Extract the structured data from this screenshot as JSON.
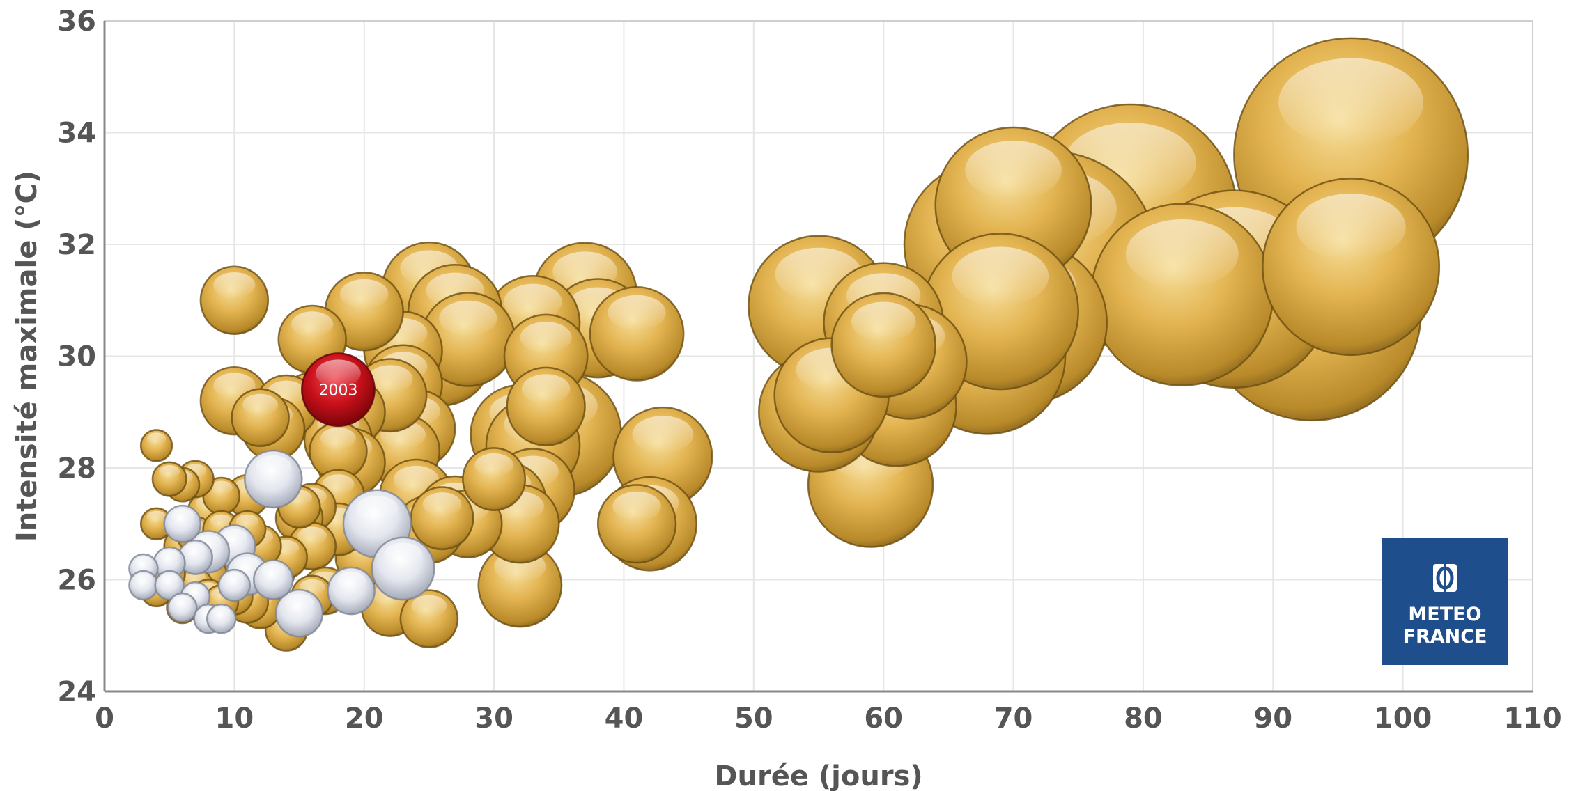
{
  "chart_data": {
    "type": "bubble",
    "title": "",
    "xlabel": "Durée (jours)",
    "ylabel": "Intensité maximale (°C)",
    "xlim": [
      0,
      110
    ],
    "ylim": [
      24,
      36
    ],
    "xticks": [
      0,
      10,
      20,
      30,
      40,
      50,
      60,
      70,
      80,
      90,
      100,
      110
    ],
    "yticks": [
      24,
      26,
      28,
      30,
      32,
      34,
      36
    ],
    "grid": true,
    "legend": "none",
    "colors": {
      "gold": "#D9A93C",
      "silver": "#D8DCE4",
      "red": "#C8101A"
    },
    "series": [
      {
        "color_key": "gold",
        "points": [
          {
            "x": 96,
            "y": 33.6,
            "r": 9.0
          },
          {
            "x": 79,
            "y": 32.6,
            "r": 8.2
          },
          {
            "x": 93,
            "y": 30.8,
            "r": 8.4
          },
          {
            "x": 87,
            "y": 31.2,
            "r": 7.6
          },
          {
            "x": 73,
            "y": 31.8,
            "r": 8.0
          },
          {
            "x": 96,
            "y": 31.6,
            "r": 6.8
          },
          {
            "x": 83,
            "y": 31.1,
            "r": 7.0
          },
          {
            "x": 68,
            "y": 32.0,
            "r": 6.4
          },
          {
            "x": 70,
            "y": 32.7,
            "r": 6.0
          },
          {
            "x": 71,
            "y": 30.6,
            "r": 6.2
          },
          {
            "x": 68,
            "y": 30.0,
            "r": 6.0
          },
          {
            "x": 69,
            "y": 30.8,
            "r": 6.0
          },
          {
            "x": 55,
            "y": 30.9,
            "r": 5.4
          },
          {
            "x": 60,
            "y": 30.6,
            "r": 4.6
          },
          {
            "x": 62,
            "y": 29.9,
            "r": 4.4
          },
          {
            "x": 60,
            "y": 30.2,
            "r": 4.0
          },
          {
            "x": 56,
            "y": 29.3,
            "r": 4.4
          },
          {
            "x": 61,
            "y": 29.1,
            "r": 4.6
          },
          {
            "x": 55,
            "y": 29.0,
            "r": 4.6
          },
          {
            "x": 59,
            "y": 27.7,
            "r": 4.8
          },
          {
            "x": 37,
            "y": 31.1,
            "r": 4.0
          },
          {
            "x": 38,
            "y": 30.5,
            "r": 3.8
          },
          {
            "x": 41,
            "y": 30.4,
            "r": 3.6
          },
          {
            "x": 33,
            "y": 30.6,
            "r": 3.6
          },
          {
            "x": 34,
            "y": 30.0,
            "r": 3.2
          },
          {
            "x": 35,
            "y": 28.6,
            "r": 4.8
          },
          {
            "x": 32,
            "y": 28.6,
            "r": 3.8
          },
          {
            "x": 33,
            "y": 28.4,
            "r": 3.6
          },
          {
            "x": 34,
            "y": 29.1,
            "r": 3.0
          },
          {
            "x": 43,
            "y": 28.2,
            "r": 3.8
          },
          {
            "x": 42,
            "y": 27.0,
            "r": 3.6
          },
          {
            "x": 41,
            "y": 27.0,
            "r": 3.0
          },
          {
            "x": 32,
            "y": 25.9,
            "r": 3.2
          },
          {
            "x": 33,
            "y": 27.6,
            "r": 3.2
          },
          {
            "x": 31,
            "y": 27.4,
            "r": 3.0
          },
          {
            "x": 32,
            "y": 27.0,
            "r": 3.0
          },
          {
            "x": 30,
            "y": 27.8,
            "r": 2.4
          },
          {
            "x": 25,
            "y": 31.2,
            "r": 3.6
          },
          {
            "x": 27,
            "y": 30.8,
            "r": 3.6
          },
          {
            "x": 26,
            "y": 30.0,
            "r": 3.8
          },
          {
            "x": 28,
            "y": 30.3,
            "r": 3.6
          },
          {
            "x": 23,
            "y": 30.1,
            "r": 3.0
          },
          {
            "x": 23,
            "y": 29.5,
            "r": 3.0
          },
          {
            "x": 24,
            "y": 28.7,
            "r": 3.0
          },
          {
            "x": 23,
            "y": 28.3,
            "r": 2.8
          },
          {
            "x": 20,
            "y": 30.8,
            "r": 3.0
          },
          {
            "x": 16,
            "y": 30.3,
            "r": 2.6
          },
          {
            "x": 22,
            "y": 29.3,
            "r": 2.8
          },
          {
            "x": 19,
            "y": 29.0,
            "r": 2.6
          },
          {
            "x": 16,
            "y": 29.1,
            "r": 2.6
          },
          {
            "x": 14,
            "y": 29.1,
            "r": 2.4
          },
          {
            "x": 10,
            "y": 31.0,
            "r": 2.6
          },
          {
            "x": 10,
            "y": 29.2,
            "r": 2.6
          },
          {
            "x": 12,
            "y": 28.9,
            "r": 2.2
          },
          {
            "x": 13,
            "y": 28.7,
            "r": 2.4
          },
          {
            "x": 18,
            "y": 28.5,
            "r": 2.6
          },
          {
            "x": 19,
            "y": 28.1,
            "r": 2.6
          },
          {
            "x": 18,
            "y": 28.3,
            "r": 2.2
          },
          {
            "x": 24,
            "y": 27.5,
            "r": 2.8
          },
          {
            "x": 27,
            "y": 27.2,
            "r": 2.8
          },
          {
            "x": 28,
            "y": 27.0,
            "r": 2.6
          },
          {
            "x": 25,
            "y": 26.9,
            "r": 2.6
          },
          {
            "x": 26,
            "y": 27.1,
            "r": 2.4
          },
          {
            "x": 18,
            "y": 27.5,
            "r": 2.0
          },
          {
            "x": 18,
            "y": 26.9,
            "r": 2.0
          },
          {
            "x": 20,
            "y": 26.4,
            "r": 2.2
          },
          {
            "x": 22,
            "y": 26.0,
            "r": 2.4
          },
          {
            "x": 22,
            "y": 25.5,
            "r": 2.2
          },
          {
            "x": 25,
            "y": 25.3,
            "r": 2.2
          },
          {
            "x": 16,
            "y": 27.3,
            "r": 1.8
          },
          {
            "x": 15,
            "y": 27.1,
            "r": 1.8
          },
          {
            "x": 15,
            "y": 27.3,
            "r": 1.6
          },
          {
            "x": 16,
            "y": 26.6,
            "r": 1.8
          },
          {
            "x": 17,
            "y": 25.8,
            "r": 1.8
          },
          {
            "x": 16,
            "y": 25.7,
            "r": 1.6
          },
          {
            "x": 14,
            "y": 25.1,
            "r": 1.6
          },
          {
            "x": 12,
            "y": 25.5,
            "r": 1.6
          },
          {
            "x": 11,
            "y": 25.6,
            "r": 1.6
          },
          {
            "x": 13,
            "y": 26.1,
            "r": 1.6
          },
          {
            "x": 14,
            "y": 26.4,
            "r": 1.6
          },
          {
            "x": 12,
            "y": 26.6,
            "r": 1.6
          },
          {
            "x": 11,
            "y": 27.5,
            "r": 1.6
          },
          {
            "x": 9,
            "y": 27.5,
            "r": 1.4
          },
          {
            "x": 8,
            "y": 27.2,
            "r": 1.6
          },
          {
            "x": 7,
            "y": 27.8,
            "r": 1.4
          },
          {
            "x": 6,
            "y": 27.7,
            "r": 1.3
          },
          {
            "x": 5,
            "y": 27.8,
            "r": 1.3
          },
          {
            "x": 4,
            "y": 28.4,
            "r": 1.2
          },
          {
            "x": 4,
            "y": 27.0,
            "r": 1.2
          },
          {
            "x": 6,
            "y": 26.6,
            "r": 1.4
          },
          {
            "x": 7,
            "y": 26.8,
            "r": 1.4
          },
          {
            "x": 9,
            "y": 26.9,
            "r": 1.4
          },
          {
            "x": 10,
            "y": 26.3,
            "r": 1.4
          },
          {
            "x": 8,
            "y": 26.1,
            "r": 1.4
          },
          {
            "x": 7,
            "y": 25.9,
            "r": 1.3
          },
          {
            "x": 8,
            "y": 25.7,
            "r": 1.3
          },
          {
            "x": 9,
            "y": 25.6,
            "r": 1.3
          },
          {
            "x": 10,
            "y": 25.7,
            "r": 1.4
          },
          {
            "x": 4,
            "y": 25.8,
            "r": 1.2
          },
          {
            "x": 5,
            "y": 26.1,
            "r": 1.2
          },
          {
            "x": 6,
            "y": 25.5,
            "r": 1.2
          },
          {
            "x": 11,
            "y": 26.9,
            "r": 1.4
          }
        ]
      },
      {
        "color_key": "silver",
        "points": [
          {
            "x": 21,
            "y": 27.0,
            "r": 2.6
          },
          {
            "x": 23,
            "y": 26.2,
            "r": 2.4
          },
          {
            "x": 13,
            "y": 27.8,
            "r": 2.2
          },
          {
            "x": 15,
            "y": 25.4,
            "r": 1.8
          },
          {
            "x": 19,
            "y": 25.8,
            "r": 1.8
          },
          {
            "x": 10,
            "y": 26.6,
            "r": 1.6
          },
          {
            "x": 8,
            "y": 26.5,
            "r": 1.6
          },
          {
            "x": 11,
            "y": 26.1,
            "r": 1.6
          },
          {
            "x": 13,
            "y": 26.0,
            "r": 1.5
          },
          {
            "x": 6,
            "y": 27.0,
            "r": 1.4
          },
          {
            "x": 7,
            "y": 26.4,
            "r": 1.3
          },
          {
            "x": 5,
            "y": 26.3,
            "r": 1.2
          },
          {
            "x": 3,
            "y": 26.2,
            "r": 1.1
          },
          {
            "x": 3,
            "y": 25.9,
            "r": 1.1
          },
          {
            "x": 5,
            "y": 25.9,
            "r": 1.1
          },
          {
            "x": 7,
            "y": 25.7,
            "r": 1.1
          },
          {
            "x": 6,
            "y": 25.5,
            "r": 1.1
          },
          {
            "x": 8,
            "y": 25.3,
            "r": 1.1
          },
          {
            "x": 9,
            "y": 25.3,
            "r": 1.1
          },
          {
            "x": 10,
            "y": 25.9,
            "r": 1.2
          }
        ]
      },
      {
        "color_key": "red",
        "points": [
          {
            "x": 18,
            "y": 29.4,
            "r": 2.8,
            "label": "2003"
          }
        ]
      }
    ]
  },
  "logo": {
    "line1": "METEO",
    "line2": "FRANCE",
    "bg": "#1E4E8C"
  }
}
